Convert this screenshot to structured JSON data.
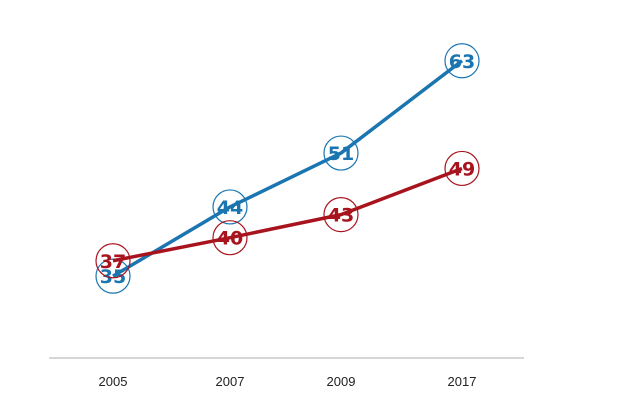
{
  "chart_data": {
    "type": "line",
    "categories": [
      "2005",
      "2007",
      "2009",
      "2017"
    ],
    "series": [
      {
        "values": [
          35,
          44,
          51,
          63
        ],
        "color": "#1a75b0"
      },
      {
        "values": [
          37,
          40,
          43,
          49
        ],
        "color": "#a8141e"
      }
    ],
    "ylim": [
      28,
      67
    ],
    "grid": false,
    "legend": "none",
    "axis_color": "#c8c8c8"
  }
}
